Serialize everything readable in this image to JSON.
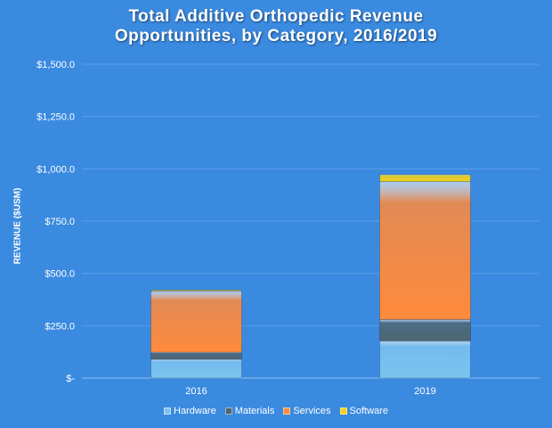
{
  "chart_data": {
    "type": "bar",
    "stacked": true,
    "title": "Total Additive Orthopedic Revenue Opportunities, by Category, 2016/2019",
    "title_lines": [
      "Total Additive Orthopedic Revenue",
      "Opportunities, by Category, 2016/2019"
    ],
    "xlabel": "",
    "ylabel": "REVENUE ($USM)",
    "ylim": [
      0,
      1500
    ],
    "yticks": [
      0,
      250,
      500,
      750,
      1000,
      1250,
      1500
    ],
    "ytick_labels": [
      "$-",
      "$250.0",
      "$500.0",
      "$750.0",
      "$1,000.0",
      "$1,250.0",
      "$1,500.0"
    ],
    "grid": true,
    "legend": "bottom",
    "categories": [
      "2016",
      "2019"
    ],
    "series": [
      {
        "name": "Hardware",
        "values": [
          90,
          178
        ],
        "color": "#7cc4ef"
      },
      {
        "name": "Materials",
        "values": [
          33,
          102
        ],
        "color": "#4f6673"
      },
      {
        "name": "Services",
        "values": [
          293,
          659
        ],
        "color": "#ff8a3c"
      },
      {
        "name": "Software",
        "values": [
          5,
          34
        ],
        "color": "#f2d21c"
      }
    ]
  },
  "background": "#3a8ae0"
}
